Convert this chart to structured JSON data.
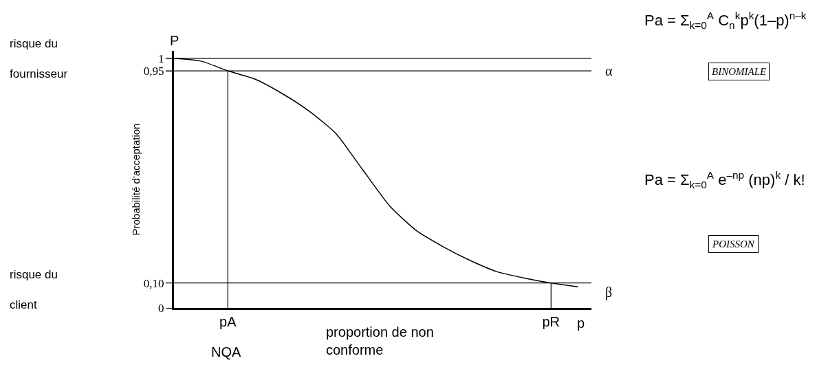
{
  "chart_data": {
    "type": "line",
    "ylabel": "Probabilité d'acceptation",
    "xlabel": "proportion de non conforme",
    "categories": [
      null,
      null,
      "pA",
      null,
      null,
      null,
      null,
      null,
      null,
      null,
      null,
      null,
      null,
      null,
      "pR",
      null
    ],
    "series": [
      {
        "color": "#000000",
        "values": [
          1.0,
          0.989,
          0.95,
          0.917,
          0.86,
          0.79,
          0.7,
          0.555,
          0.41,
          0.31,
          0.245,
          0.19,
          0.145,
          0.12,
          0.1,
          0.085
        ]
      }
    ],
    "ylim": [
      0,
      1.03
    ],
    "yticks": [
      0,
      {
        "value": 0.1,
        "label": "0,10"
      },
      {
        "value": 0.95,
        "label": "0,95"
      },
      1
    ],
    "ref_lines": [
      {
        "axis": "y",
        "value": 1
      },
      {
        "axis": "y",
        "value": 0.95,
        "label": "α"
      },
      {
        "axis": "y",
        "value": 0.1,
        "label": "β"
      },
      {
        "axis": "x",
        "value": "pA"
      },
      {
        "axis": "x",
        "value": "pR"
      }
    ],
    "annotations": [
      "P",
      "NQA",
      "risque du fournisseur",
      "risque du client",
      "Pa = Σ$_{k=0}$$^{A}$ C$_{n}$$^{k}$p$^{k}$(1–p)$^{n–k}$",
      "BINOMIALE",
      "Pa = Σ$_{k=0}$$^{A}$ e$^{–np}$ (np)$^{k}$ / k!",
      "POISSON",
      "p"
    ],
    "marker": "none",
    "line_style": "solid"
  }
}
